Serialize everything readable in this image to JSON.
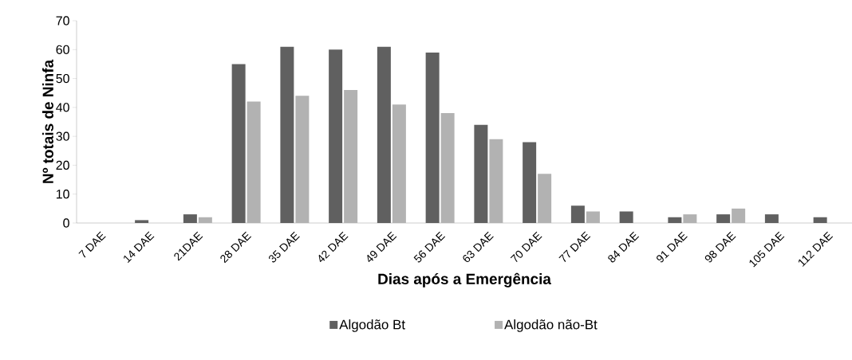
{
  "chart_data": {
    "type": "bar",
    "xlabel": "Dias após a Emergência",
    "ylabel": "Nº totais de Ninfa",
    "categories": [
      "7 DAE",
      "14 DAE",
      "21DAE",
      "28 DAE",
      "35 DAE",
      "42 DAE",
      "49 DAE",
      "56 DAE",
      "63 DAE",
      "70 DAE",
      "77 DAE",
      "84 DAE",
      "91 DAE",
      "98 DAE",
      "105 DAE",
      "112 DAE"
    ],
    "series": [
      {
        "name": "Algodão Bt",
        "color": "#606060",
        "values": [
          0,
          1,
          3,
          55,
          61,
          60,
          61,
          59,
          34,
          28,
          6,
          4,
          2,
          3,
          3,
          2
        ]
      },
      {
        "name": "Algodão não-Bt",
        "color": "#b2b2b2",
        "values": [
          0,
          0,
          2,
          42,
          44,
          46,
          41,
          38,
          29,
          17,
          4,
          0,
          3,
          5,
          0,
          0
        ]
      }
    ],
    "ylim": [
      0,
      70
    ],
    "yticks": [
      0,
      10,
      20,
      30,
      40,
      50,
      60,
      70
    ],
    "grid": false,
    "legend": "bottom"
  }
}
